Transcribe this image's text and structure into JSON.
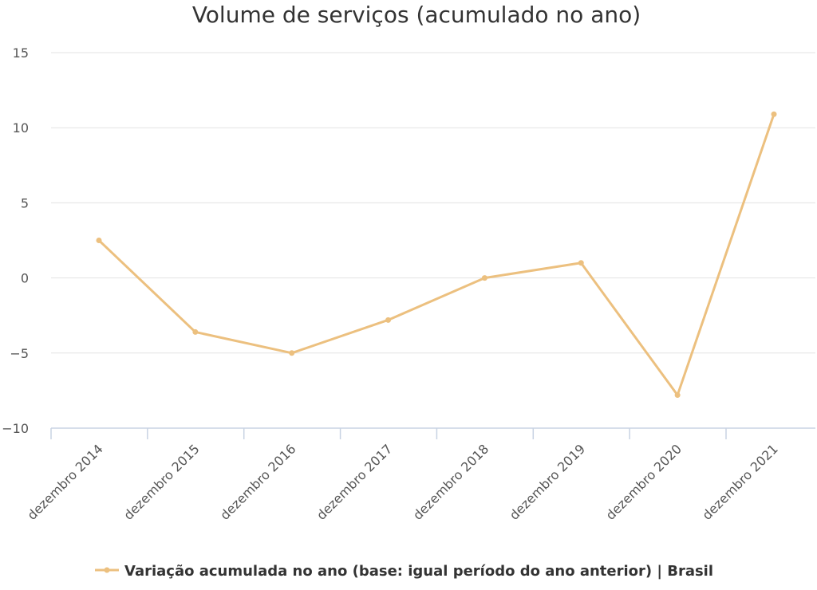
{
  "chart_data": {
    "type": "line",
    "title": "Volume de serviços (acumulado no ano)",
    "categories": [
      "dezembro 2014",
      "dezembro 2015",
      "dezembro 2016",
      "dezembro 2017",
      "dezembro 2018",
      "dezembro 2019",
      "dezembro 2020",
      "dezembro 2021"
    ],
    "series": [
      {
        "name": "Variação acumulada no ano (base: igual período do ano anterior) | Brasil",
        "color": "#ecc07f",
        "values": [
          2.5,
          -3.6,
          -5.0,
          -2.8,
          0.0,
          1.0,
          -7.8,
          10.9
        ]
      }
    ],
    "yticks": [
      15,
      10,
      5,
      0,
      -5,
      -10
    ],
    "ytick_labels": [
      "15",
      "10",
      "5",
      "0",
      "−5",
      "−10"
    ],
    "ylim": [
      -10,
      15
    ],
    "grid": true,
    "legend": "bottom-center"
  }
}
